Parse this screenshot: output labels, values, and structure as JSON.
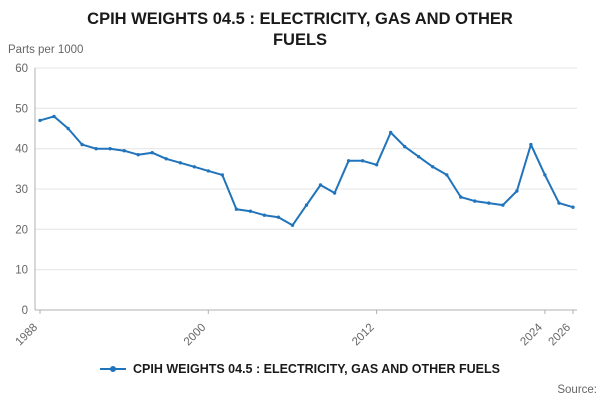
{
  "title": "CPIH WEIGHTS 04.5 : ELECTRICITY, GAS AND OTHER FUELS",
  "y_axis_unit": "Parts per 1000",
  "legend": {
    "label": "CPIH WEIGHTS 04.5 : ELECTRICITY, GAS AND OTHER FUELS"
  },
  "source_label": "Source:",
  "colors": {
    "line": "#2074bb",
    "grid": "#e4e4e4",
    "axis": "#b0b0b0",
    "text": "#666666",
    "title": "#1a1a1a"
  },
  "chart_data": {
    "type": "line",
    "title": "CPIH WEIGHTS 04.5 : ELECTRICITY, GAS AND OTHER FUELS",
    "xlabel": "",
    "ylabel": "Parts per 1000",
    "ylim": [
      0,
      60
    ],
    "y_ticks": [
      0,
      10,
      20,
      30,
      40,
      50,
      60
    ],
    "x_tick_labels": [
      1988,
      2000,
      2012,
      2024,
      2026
    ],
    "grid": true,
    "legend_position": "bottom",
    "marker": "dot",
    "x": [
      1988,
      1989,
      1990,
      1991,
      1992,
      1993,
      1994,
      1995,
      1996,
      1997,
      1998,
      1999,
      2000,
      2001,
      2002,
      2003,
      2004,
      2005,
      2006,
      2007,
      2008,
      2009,
      2010,
      2011,
      2012,
      2013,
      2014,
      2015,
      2016,
      2017,
      2018,
      2019,
      2020,
      2021,
      2022,
      2023,
      2024,
      2025,
      2026
    ],
    "series": [
      {
        "name": "CPIH WEIGHTS 04.5 : ELECTRICITY, GAS AND OTHER FUELS",
        "values": [
          47,
          48,
          45,
          41,
          40,
          40,
          39.5,
          38.5,
          39,
          37.5,
          36.5,
          35.5,
          34.5,
          33.5,
          25,
          24.5,
          23.5,
          23,
          21,
          26,
          31,
          29,
          37,
          37,
          36,
          44,
          40.5,
          38,
          35.5,
          33.5,
          28,
          27,
          26.5,
          26,
          29.5,
          41,
          33.5,
          26.5,
          25.5
        ]
      }
    ]
  }
}
